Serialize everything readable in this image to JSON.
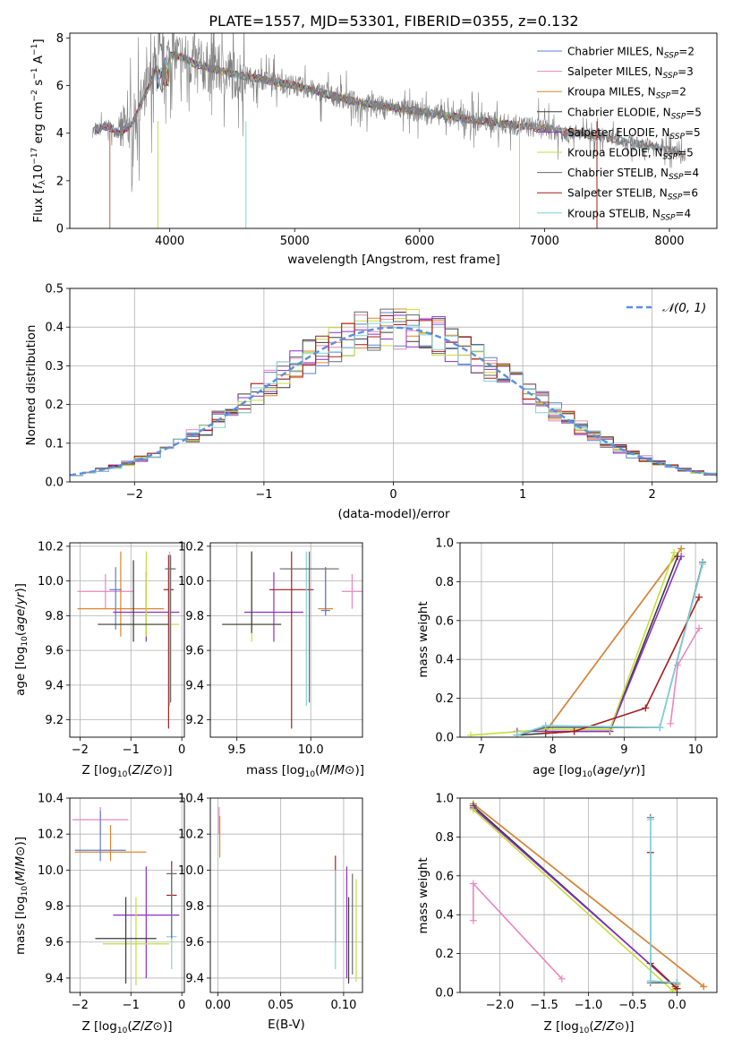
{
  "figure_title": "PLATE=1557, MJD=53301, FIBERID=0355, z=0.132",
  "palette": {
    "Chabrier MILES": "#5b7fd6",
    "Salpeter MILES": "#e986bf",
    "Kroupa MILES": "#e0862b",
    "Chabrier ELODIE": "#3a3a3a",
    "Salpeter ELODIE": "#8b2fc9",
    "Kroupa ELODIE": "#c5df3a",
    "Chabrier STELIB": "#6a6a6a",
    "Salpeter STELIB": "#a51d1d",
    "Kroupa STELIB": "#7fd3de",
    "data": "#808080",
    "normal": "#5b8fe0"
  },
  "chart_data": [
    {
      "id": "spectrum",
      "type": "line",
      "title": "PLATE=1557, MJD=53301, FIBERID=0355, z=0.132",
      "xlabel": "wavelength [Angstrom, rest frame]",
      "ylabel": "Flux [f_λ 10^-17 erg cm^-2 s^-1 A^-1]",
      "xlim": [
        3200,
        8380
      ],
      "ylim": [
        0,
        8.2
      ],
      "xticks": [
        4000,
        5000,
        6000,
        7000,
        8000
      ],
      "yticks": [
        0,
        2,
        4,
        6,
        8
      ],
      "grid": false,
      "legend_position": "top-right",
      "continuum": {
        "x": [
          3400,
          3500,
          3600,
          3700,
          3800,
          3900,
          4000,
          4100,
          4200,
          4500,
          5000,
          5500,
          6000,
          6500,
          7000,
          7500,
          8000,
          8100
        ],
        "y": [
          4.1,
          4.3,
          4.0,
          4.4,
          5.6,
          6.8,
          7.3,
          7.2,
          6.9,
          6.5,
          6.0,
          5.3,
          4.9,
          4.5,
          4.2,
          3.8,
          3.3,
          3.1
        ]
      },
      "legend": [
        {
          "base": "Chabrier MILES, N",
          "sub": "SSP",
          "tail": "=2"
        },
        {
          "base": "Salpeter MILES, N",
          "sub": "SSP",
          "tail": "=3"
        },
        {
          "base": "Kroupa MILES, N",
          "sub": "SSP",
          "tail": "=2"
        },
        {
          "base": "Chabrier ELODIE, N",
          "sub": "SSP",
          "tail": "=5"
        },
        {
          "base": "Salpeter ELODIE, N",
          "sub": "SSP",
          "tail": "=5"
        },
        {
          "base": "Kroupa ELODIE, N",
          "sub": "SSP",
          "tail": "=5"
        },
        {
          "base": "Chabrier STELIB, N",
          "sub": "SSP",
          "tail": "=4"
        },
        {
          "base": "Salpeter STELIB, N",
          "sub": "SSP",
          "tail": "=6"
        },
        {
          "base": "Kroupa STELIB, N",
          "sub": "SSP",
          "tail": "=4"
        }
      ]
    },
    {
      "id": "residuals",
      "type": "line",
      "xlabel": "(data-model)/error",
      "ylabel": "Normed distribution",
      "xlim": [
        -2.5,
        2.5
      ],
      "ylim": [
        0,
        0.5
      ],
      "xticks": [
        -2,
        -1,
        0,
        1,
        2
      ],
      "yticks": [
        0.0,
        0.1,
        0.2,
        0.3,
        0.4,
        0.5
      ],
      "grid": true,
      "legend": "𝒩(0, 1)",
      "legend_position": "top-right",
      "bin_width": 0.1
    },
    {
      "id": "age_vs_Z",
      "type": "scatter",
      "xlabel": "Z [log10(Z/Z⊙)]",
      "ylabel": "age [log10(age/yr)]",
      "xlim": [
        -2.2,
        0.05
      ],
      "ylim": [
        9.1,
        10.22
      ],
      "xticks": [
        -2,
        -1,
        0
      ],
      "yticks": [
        9.2,
        9.4,
        9.6,
        9.8,
        10.0,
        10.2
      ],
      "grid": true,
      "series": [
        {
          "model": "Salpeter MILES",
          "x": -1.5,
          "xerr": 0.55,
          "y": 9.94,
          "ylo": 9.84,
          "yhi": 10.04
        },
        {
          "model": "Kroupa MILES",
          "x": -1.2,
          "xerr": 0.85,
          "y": 9.84,
          "ylo": 9.68,
          "yhi": 10.17
        },
        {
          "model": "Chabrier MILES",
          "x": -1.3,
          "xerr": 0.12,
          "y": 9.95,
          "ylo": 9.72,
          "yhi": 10.08
        },
        {
          "model": "Salpeter ELODIE",
          "x": -0.7,
          "xerr": 0.65,
          "y": 9.82,
          "ylo": 9.65,
          "yhi": 10.05
        },
        {
          "model": "Kroupa ELODIE",
          "x": -0.7,
          "xerr": 0.65,
          "y": 9.75,
          "ylo": 9.68,
          "yhi": 10.17
        },
        {
          "model": "Chabrier ELODIE",
          "x": -0.95,
          "xerr": 0.7,
          "y": 9.75,
          "ylo": 9.65,
          "yhi": 10.12
        },
        {
          "model": "Salpeter STELIB",
          "x": -0.26,
          "xerr": 0.1,
          "y": 9.95,
          "ylo": 9.15,
          "yhi": 10.15
        },
        {
          "model": "Kroupa STELIB",
          "x": -0.24,
          "xerr": 0.1,
          "y": 10.07,
          "ylo": 9.28,
          "yhi": 10.17
        },
        {
          "model": "Chabrier STELIB",
          "x": -0.22,
          "xerr": 0.1,
          "y": 10.07,
          "ylo": 9.3,
          "yhi": 10.15
        }
      ]
    },
    {
      "id": "age_vs_mass",
      "type": "scatter",
      "xlabel": "mass [log10(M/M⊙)]",
      "ylabel": "",
      "xlim": [
        9.32,
        10.35
      ],
      "ylim": [
        9.1,
        10.22
      ],
      "xticks": [
        9.5,
        10.0
      ],
      "yticks": [
        9.2,
        9.4,
        9.6,
        9.8,
        10.0,
        10.2
      ],
      "grid": true,
      "series": [
        {
          "model": "Salpeter MILES",
          "x": 10.28,
          "xerr": 0.07,
          "y": 9.94,
          "ylo": 9.84,
          "yhi": 10.04
        },
        {
          "model": "Kroupa MILES",
          "x": 10.1,
          "xerr": 0.05,
          "y": 9.84,
          "ylo": 9.8,
          "yhi": 10.08
        },
        {
          "model": "Chabrier MILES",
          "x": 10.1,
          "xerr": 0.03,
          "y": 9.83,
          "ylo": 9.8,
          "yhi": 10.08
        },
        {
          "model": "Salpeter ELODIE",
          "x": 9.75,
          "xerr": 0.2,
          "y": 9.82,
          "ylo": 9.65,
          "yhi": 10.05
        },
        {
          "model": "Kroupa ELODIE",
          "x": 9.6,
          "xerr": 0.2,
          "y": 9.75,
          "ylo": 9.65,
          "yhi": 10.17
        },
        {
          "model": "Chabrier ELODIE",
          "x": 9.6,
          "xerr": 0.2,
          "y": 9.75,
          "ylo": 9.7,
          "yhi": 10.17
        },
        {
          "model": "Salpeter STELIB",
          "x": 9.87,
          "xerr": 0.15,
          "y": 9.95,
          "ylo": 9.15,
          "yhi": 10.17
        },
        {
          "model": "Kroupa STELIB",
          "x": 9.97,
          "xerr": 0.15,
          "y": 10.07,
          "ylo": 9.28,
          "yhi": 10.17
        },
        {
          "model": "Chabrier STELIB",
          "x": 9.99,
          "xerr": 0.2,
          "y": 10.07,
          "ylo": 9.3,
          "yhi": 10.17
        }
      ]
    },
    {
      "id": "weight_vs_age",
      "type": "line",
      "xlabel": "age [log10(age/yr)]",
      "ylabel": "mass weight",
      "xlim": [
        6.7,
        10.3
      ],
      "ylim": [
        0,
        1.0
      ],
      "xticks": [
        7,
        8,
        9,
        10
      ],
      "yticks": [
        0.0,
        0.2,
        0.4,
        0.6,
        0.8,
        1.0
      ],
      "grid": true,
      "series": [
        {
          "model": "Chabrier MILES",
          "x": [
            7.9,
            9.8
          ],
          "y": [
            0.03,
            0.97
          ]
        },
        {
          "model": "Salpeter MILES",
          "x": [
            9.65,
            9.75,
            10.05
          ],
          "y": [
            0.07,
            0.37,
            0.56
          ]
        },
        {
          "model": "Kroupa MILES",
          "x": [
            7.9,
            9.8
          ],
          "y": [
            0.03,
            0.97
          ]
        },
        {
          "model": "Chabrier ELODIE",
          "x": [
            7.5,
            8.3,
            8.8,
            9.75
          ],
          "y": [
            0.01,
            0.03,
            0.03,
            0.93
          ]
        },
        {
          "model": "Salpeter ELODIE",
          "x": [
            7.5,
            8.3,
            8.8,
            9.8
          ],
          "y": [
            0.03,
            0.03,
            0.03,
            0.93
          ]
        },
        {
          "model": "Kroupa ELODIE",
          "x": [
            6.85,
            7.9,
            8.8,
            9.7
          ],
          "y": [
            0.01,
            0.04,
            0.04,
            0.95
          ]
        },
        {
          "model": "Chabrier STELIB",
          "x": [
            7.5,
            7.9,
            9.5,
            10.1
          ],
          "y": [
            0.01,
            0.05,
            0.05,
            0.9
          ]
        },
        {
          "model": "Salpeter STELIB",
          "x": [
            7.9,
            8.3,
            9.3,
            10.05
          ],
          "y": [
            0.02,
            0.03,
            0.15,
            0.72
          ]
        },
        {
          "model": "Kroupa STELIB",
          "x": [
            7.5,
            7.9,
            9.5,
            10.1
          ],
          "y": [
            0.01,
            0.06,
            0.05,
            0.89
          ]
        }
      ]
    },
    {
      "id": "mass_vs_Z",
      "type": "scatter",
      "xlabel": "Z [log10(Z/Z⊙)]",
      "ylabel": "mass [log10(M/M⊙)]",
      "xlim": [
        -2.2,
        0.05
      ],
      "ylim": [
        9.32,
        10.4
      ],
      "xticks": [
        -2,
        -1,
        0
      ],
      "yticks": [
        9.4,
        9.6,
        9.8,
        10.0,
        10.2,
        10.4
      ],
      "grid": true,
      "series": [
        {
          "model": "Salpeter MILES",
          "x": -1.6,
          "xerr": 0.55,
          "y": 10.28,
          "ylo": 10.2,
          "yhi": 10.35
        },
        {
          "model": "Kroupa MILES",
          "x": -1.4,
          "xerr": 0.7,
          "y": 10.1,
          "ylo": 10.05,
          "yhi": 10.25
        },
        {
          "model": "Chabrier MILES",
          "x": -1.6,
          "xerr": 0.5,
          "y": 10.11,
          "ylo": 10.05,
          "yhi": 10.33
        },
        {
          "model": "Salpeter ELODIE",
          "x": -0.7,
          "xerr": 0.65,
          "y": 9.75,
          "ylo": 9.4,
          "yhi": 10.02
        },
        {
          "model": "Kroupa ELODIE",
          "x": -0.9,
          "xerr": 0.65,
          "y": 9.59,
          "ylo": 9.36,
          "yhi": 9.85
        },
        {
          "model": "Chabrier ELODIE",
          "x": -1.1,
          "xerr": 0.6,
          "y": 9.62,
          "ylo": 9.37,
          "yhi": 9.85
        },
        {
          "model": "Salpeter STELIB",
          "x": -0.2,
          "xerr": 0.1,
          "y": 9.86,
          "ylo": 9.75,
          "yhi": 10.05
        },
        {
          "model": "Kroupa STELIB",
          "x": -0.2,
          "xerr": 0.1,
          "y": 9.63,
          "ylo": 9.45,
          "yhi": 9.98
        },
        {
          "model": "Chabrier STELIB",
          "x": -0.2,
          "xerr": 0.1,
          "y": 9.98,
          "ylo": 9.62,
          "yhi": 10.02
        }
      ]
    },
    {
      "id": "mass_vs_EBV",
      "type": "scatter",
      "xlabel": "E(B-V)",
      "ylabel": "",
      "xlim": [
        -0.006,
        0.115
      ],
      "ylim": [
        9.32,
        10.4
      ],
      "xticks": [
        0.0,
        0.05,
        0.1
      ],
      "ytick_labels": [
        "9.4",
        "9.6",
        "9.8",
        "10.0",
        "10.2",
        "10.4"
      ],
      "xtick_labels": [
        "0.00",
        "0.05",
        "0.10"
      ],
      "yticks": [
        9.4,
        9.6,
        9.8,
        10.0,
        10.2,
        10.4
      ],
      "grid": true,
      "series": [
        {
          "model": "Salpeter MILES",
          "x": 0.001,
          "ylo": 10.2,
          "yhi": 10.35
        },
        {
          "model": "Kroupa MILES",
          "x": 0.0015,
          "ylo": 10.07,
          "yhi": 10.3
        },
        {
          "model": "Salpeter STELIB",
          "x": 0.0935,
          "ylo": 9.6,
          "yhi": 10.08
        },
        {
          "model": "Kroupa STELIB",
          "x": 0.0935,
          "ylo": 9.45,
          "yhi": 10.0
        },
        {
          "model": "Salpeter ELODIE",
          "x": 0.1025,
          "ylo": 9.4,
          "yhi": 10.02
        },
        {
          "model": "Chabrier ELODIE",
          "x": 0.104,
          "ylo": 9.37,
          "yhi": 9.85
        },
        {
          "model": "Chabrier STELIB",
          "x": 0.107,
          "ylo": 9.42,
          "yhi": 9.98
        },
        {
          "model": "Kroupa ELODIE",
          "x": 0.11,
          "ylo": 9.38,
          "yhi": 9.95
        }
      ]
    },
    {
      "id": "weight_vs_Z",
      "type": "line",
      "xlabel": "Z [log10(Z/Z⊙)]",
      "ylabel": "mass weight",
      "xlim": [
        -2.45,
        0.45
      ],
      "ylim": [
        0,
        1.0
      ],
      "xticks": [
        -2.0,
        -1.5,
        -1.0,
        -0.5,
        0.0
      ],
      "xtick_labels": [
        "−2.0",
        "−1.5",
        "−1.0",
        "−0.5",
        "0.0"
      ],
      "yticks": [
        0.0,
        0.2,
        0.4,
        0.6,
        0.8,
        1.0
      ],
      "grid": true,
      "series": [
        {
          "model": "Chabrier MILES",
          "x": [
            -2.3,
            0.3
          ],
          "y": [
            0.97,
            0.03
          ]
        },
        {
          "model": "Salpeter MILES",
          "x": [
            -2.3,
            -2.3,
            -1.3
          ],
          "y": [
            0.37,
            0.56,
            0.07
          ]
        },
        {
          "model": "Kroupa MILES",
          "x": [
            -2.3,
            0.3
          ],
          "y": [
            0.97,
            0.03
          ]
        },
        {
          "model": "Chabrier ELODIE",
          "x": [
            -2.3,
            0.0,
            0.0
          ],
          "y": [
            0.96,
            0.02,
            0.04
          ]
        },
        {
          "model": "Salpeter ELODIE",
          "x": [
            -2.3,
            -0.02,
            0.0
          ],
          "y": [
            0.95,
            0.03,
            0.05
          ]
        },
        {
          "model": "Kroupa ELODIE",
          "x": [
            -2.3,
            -0.05,
            0.0
          ],
          "y": [
            0.94,
            0.01,
            0.04
          ]
        },
        {
          "model": "Chabrier STELIB",
          "x": [
            -0.3,
            -0.3,
            0.0
          ],
          "y": [
            0.9,
            0.05,
            0.05
          ]
        },
        {
          "model": "Salpeter STELIB",
          "x": [
            -0.3,
            -0.3,
            0.0,
            0.0
          ],
          "y": [
            0.72,
            0.15,
            0.02,
            0.05
          ]
        },
        {
          "model": "Kroupa STELIB",
          "x": [
            -0.3,
            -0.3,
            0.0
          ],
          "y": [
            0.89,
            0.06,
            0.05
          ]
        }
      ]
    }
  ]
}
